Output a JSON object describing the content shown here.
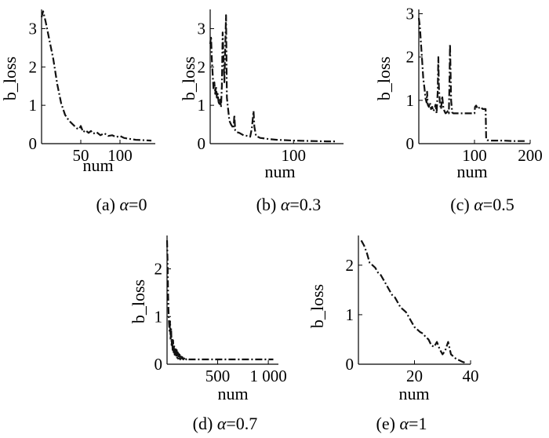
{
  "style": {
    "line_color": "#111111"
  },
  "chart_data": [
    {
      "type": "line",
      "caption_prefix": "(a) ",
      "caption_sym": "α",
      "caption_val": "=0",
      "xlabel": "num",
      "ylabel": "b_loss",
      "xlim": [
        0,
        145
      ],
      "ylim": [
        0,
        3.5
      ],
      "xticks": [
        50,
        100
      ],
      "xticklabels": [
        "50",
        "100"
      ],
      "yticks": [
        0,
        1,
        2,
        3
      ],
      "yticklabels": [
        "0",
        "1",
        "2",
        "3"
      ],
      "series": [
        {
          "x": [
            0,
            2,
            5,
            10,
            15,
            20,
            25,
            30,
            35,
            40,
            45,
            48,
            50,
            53,
            56,
            60,
            63,
            66,
            70,
            75,
            80,
            85,
            90,
            95,
            100,
            105,
            110,
            120,
            130,
            140
          ],
          "y": [
            3.3,
            3.45,
            3.2,
            2.7,
            2.2,
            1.55,
            1.05,
            0.75,
            0.6,
            0.5,
            0.4,
            0.38,
            0.46,
            0.3,
            0.35,
            0.28,
            0.33,
            0.26,
            0.3,
            0.22,
            0.27,
            0.2,
            0.22,
            0.17,
            0.2,
            0.15,
            0.13,
            0.1,
            0.09,
            0.08
          ]
        }
      ]
    },
    {
      "type": "line",
      "caption_prefix": "(b) ",
      "caption_sym": "α",
      "caption_val": "=0.3",
      "xlabel": "num",
      "ylabel": "b_loss",
      "xlim": [
        0,
        160
      ],
      "ylim": [
        0,
        3.5
      ],
      "xticks": [
        100
      ],
      "xticklabels": [
        "100"
      ],
      "yticks": [
        0,
        1,
        2,
        3
      ],
      "yticklabels": [
        "0",
        "1",
        "2",
        "3"
      ],
      "series": [
        {
          "x": [
            0,
            1,
            2,
            3,
            4,
            5,
            6,
            7,
            8,
            9,
            10,
            11,
            12,
            13,
            14,
            15,
            17,
            19,
            20,
            21,
            22,
            23,
            25,
            28,
            29,
            30,
            32,
            35,
            40,
            45,
            48,
            50,
            52,
            53,
            55,
            60,
            70,
            80,
            100,
            120,
            140,
            150
          ],
          "y": [
            2.6,
            2.8,
            2.2,
            1.8,
            1.4,
            1.6,
            1.3,
            1.5,
            1.2,
            1.3,
            1.1,
            1.0,
            1.15,
            0.95,
            1.5,
            2.9,
            1.6,
            3.35,
            1.2,
            1.0,
            0.8,
            0.6,
            0.5,
            0.4,
            0.75,
            0.35,
            0.3,
            0.28,
            0.22,
            0.2,
            0.18,
            0.4,
            0.85,
            0.45,
            0.2,
            0.15,
            0.12,
            0.1,
            0.08,
            0.07,
            0.06,
            0.06
          ]
        }
      ]
    },
    {
      "type": "line",
      "caption_prefix": "(c) ",
      "caption_sym": "α",
      "caption_val": "=0.5",
      "xlabel": "num",
      "ylabel": "b_loss",
      "xlim": [
        0,
        200
      ],
      "ylim": [
        0,
        3.1
      ],
      "xticks": [
        100,
        200
      ],
      "xticklabels": [
        "100",
        "200"
      ],
      "yticks": [
        0,
        1,
        2,
        3
      ],
      "yticklabels": [
        "0",
        "1",
        "2",
        "3"
      ],
      "series": [
        {
          "x": [
            0,
            2,
            4,
            6,
            8,
            10,
            12,
            14,
            15,
            16,
            18,
            20,
            22,
            24,
            26,
            28,
            30,
            32,
            34,
            35,
            36,
            38,
            40,
            42,
            44,
            46,
            48,
            50,
            52,
            54,
            55,
            56,
            58,
            60,
            62,
            100,
            101,
            103,
            106,
            110,
            115,
            120,
            121,
            123,
            130,
            150,
            170,
            190
          ],
          "y": [
            2.9,
            2.7,
            2.3,
            1.9,
            1.5,
            1.3,
            1.05,
            0.95,
            1.2,
            0.9,
            0.85,
            0.95,
            0.8,
            0.85,
            0.75,
            0.8,
            0.9,
            0.7,
            1.2,
            2.0,
            1.3,
            0.9,
            0.8,
            1.1,
            0.85,
            0.75,
            0.7,
            0.72,
            0.75,
            0.7,
            1.3,
            2.3,
            1.0,
            0.72,
            0.7,
            0.7,
            0.85,
            0.88,
            0.8,
            0.85,
            0.8,
            0.8,
            0.1,
            0.08,
            0.07,
            0.07,
            0.06,
            0.06
          ]
        }
      ]
    },
    {
      "type": "line",
      "caption_prefix": "(d) ",
      "caption_sym": "α",
      "caption_val": "=0.7",
      "xlabel": "num",
      "ylabel": "b_loss",
      "xlim": [
        0,
        1100
      ],
      "ylim": [
        0,
        2.7
      ],
      "xticks": [
        500,
        1000
      ],
      "xticklabels": [
        "500",
        "1 000"
      ],
      "yticks": [
        0,
        1,
        2
      ],
      "yticklabels": [
        "0",
        "1",
        "2"
      ],
      "series": [
        {
          "x": [
            0,
            5,
            10,
            15,
            20,
            25,
            30,
            35,
            40,
            45,
            50,
            55,
            60,
            65,
            70,
            75,
            80,
            85,
            90,
            95,
            100,
            105,
            110,
            115,
            120,
            125,
            130,
            135,
            140,
            150,
            160,
            170,
            180,
            190,
            200,
            220,
            250,
            300,
            400,
            500,
            600,
            700,
            800,
            900,
            1000,
            1050
          ],
          "y": [
            2.6,
            2.2,
            1.5,
            1.1,
            0.85,
            0.7,
            0.9,
            0.5,
            0.75,
            0.4,
            0.55,
            0.3,
            0.5,
            0.25,
            0.4,
            0.2,
            0.35,
            0.3,
            0.15,
            0.3,
            0.12,
            0.25,
            0.1,
            0.22,
            0.1,
            0.2,
            0.1,
            0.18,
            0.1,
            0.15,
            0.1,
            0.12,
            0.15,
            0.1,
            0.12,
            0.1,
            0.1,
            0.1,
            0.1,
            0.1,
            0.1,
            0.1,
            0.1,
            0.1,
            0.1,
            0.1
          ]
        }
      ]
    },
    {
      "type": "line",
      "caption_prefix": "(e) ",
      "caption_sym": "α",
      "caption_val": "=1",
      "xlabel": "num",
      "ylabel": "b_loss",
      "xlim": [
        0,
        40
      ],
      "ylim": [
        0,
        2.6
      ],
      "xticks": [
        20,
        40
      ],
      "xticklabels": [
        "20",
        "40"
      ],
      "yticks": [
        0,
        1,
        2
      ],
      "yticklabels": [
        "0",
        "1",
        "2"
      ],
      "series": [
        {
          "x": [
            1,
            2,
            3,
            4,
            5,
            6,
            7,
            8,
            9,
            10,
            11,
            12,
            13,
            14,
            15,
            16,
            17,
            18,
            19,
            20,
            21,
            22,
            23,
            24,
            25,
            26,
            27,
            28,
            29,
            30,
            31,
            32,
            33,
            34,
            35,
            36,
            37,
            38
          ],
          "y": [
            2.5,
            2.4,
            2.25,
            2.05,
            2.0,
            1.95,
            1.85,
            1.8,
            1.7,
            1.6,
            1.5,
            1.4,
            1.35,
            1.25,
            1.15,
            1.1,
            1.05,
            0.95,
            0.85,
            0.75,
            0.7,
            0.65,
            0.62,
            0.55,
            0.5,
            0.38,
            0.35,
            0.45,
            0.3,
            0.2,
            0.28,
            0.45,
            0.2,
            0.15,
            0.1,
            0.08,
            0.05,
            0.03
          ]
        }
      ]
    }
  ]
}
